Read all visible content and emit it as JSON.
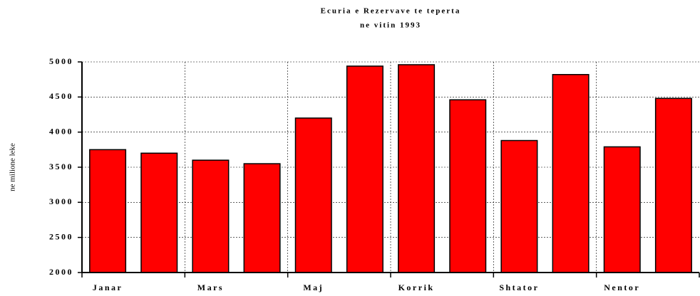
{
  "chart_data": {
    "type": "bar",
    "title": "Ecuria e Rezervave te teperta",
    "subtitle": "ne vitin 1993",
    "y_label": "ne milione leke",
    "categories": [
      "Janar",
      null,
      "Mars",
      null,
      "Maj",
      null,
      "Korrik",
      null,
      "Shtator",
      null,
      "Nentor",
      null
    ],
    "values": [
      3750,
      3700,
      3600,
      3550,
      4200,
      4940,
      4960,
      4460,
      3880,
      4820,
      3790,
      4480
    ],
    "color": "#ff0000",
    "ylim": [
      2000,
      5000
    ],
    "yticks": [
      2000,
      2500,
      3000,
      3500,
      4000,
      4500,
      5000
    ],
    "grid": true
  }
}
